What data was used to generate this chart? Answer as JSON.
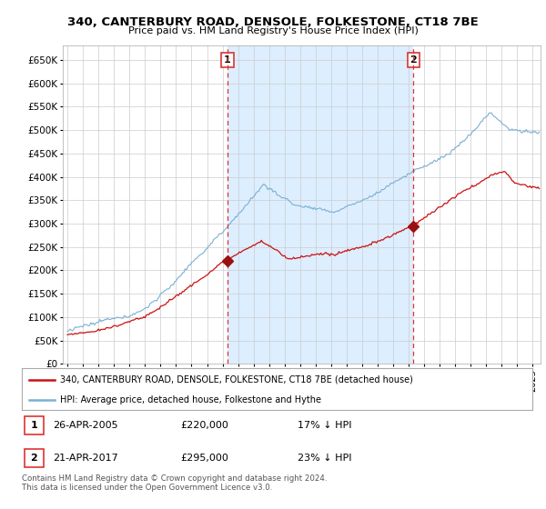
{
  "title": "340, CANTERBURY ROAD, DENSOLE, FOLKESTONE, CT18 7BE",
  "subtitle": "Price paid vs. HM Land Registry's House Price Index (HPI)",
  "ylim": [
    0,
    680000
  ],
  "yticks": [
    0,
    50000,
    100000,
    150000,
    200000,
    250000,
    300000,
    350000,
    400000,
    450000,
    500000,
    550000,
    600000,
    650000
  ],
  "ytick_labels": [
    "£0",
    "£50K",
    "£100K",
    "£150K",
    "£200K",
    "£250K",
    "£300K",
    "£350K",
    "£400K",
    "£450K",
    "£500K",
    "£550K",
    "£600K",
    "£650K"
  ],
  "sale1_date": 2005.32,
  "sale1_price": 220000,
  "sale1_label": "1",
  "sale2_date": 2017.31,
  "sale2_price": 295000,
  "sale2_label": "2",
  "hpi_color": "#7ab0d4",
  "property_color": "#cc1111",
  "sale_marker_color": "#991111",
  "vline_color": "#dd3333",
  "shade_color": "#ddeeff",
  "background_color": "#ffffff",
  "grid_color": "#cccccc",
  "legend1_text": "340, CANTERBURY ROAD, DENSOLE, FOLKESTONE, CT18 7BE (detached house)",
  "legend2_text": "HPI: Average price, detached house, Folkestone and Hythe",
  "table_row1": [
    "1",
    "26-APR-2005",
    "£220,000",
    "17% ↓ HPI"
  ],
  "table_row2": [
    "2",
    "21-APR-2017",
    "£295,000",
    "23% ↓ HPI"
  ],
  "footer": "Contains HM Land Registry data © Crown copyright and database right 2024.\nThis data is licensed under the Open Government Licence v3.0.",
  "xmin": 1994.7,
  "xmax": 2025.5
}
